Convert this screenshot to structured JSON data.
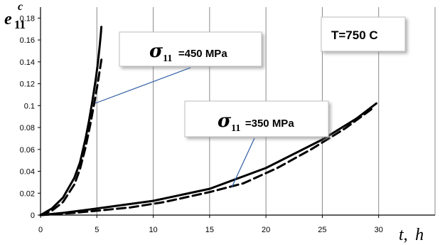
{
  "chart_data": {
    "type": "line",
    "xlabel": {
      "main": "t",
      "sep": ",",
      "unit": "h"
    },
    "ylabel": {
      "main": "e",
      "sub": "11",
      "sup": "c"
    },
    "xlim": [
      0,
      35
    ],
    "ylim": [
      0,
      0.19
    ],
    "xticks": [
      0,
      5,
      10,
      15,
      20,
      25,
      30
    ],
    "yticks": [
      0,
      0.02,
      0.04,
      0.06,
      0.08,
      0.1,
      0.12,
      0.14,
      0.16,
      0.18
    ],
    "ytick_labels": [
      "0",
      "0.02",
      "0.04",
      "0.06",
      "0.08",
      "0.1",
      "0.12",
      "0.14",
      "0.16",
      "0.18"
    ],
    "grid": {
      "vertical": true,
      "horizontal": false
    },
    "series": [
      {
        "style": "solid",
        "group": "450",
        "x": [
          0,
          1,
          2,
          3,
          3.5,
          4,
          4.3,
          4.6,
          4.9,
          5.1,
          5.25,
          5.35,
          5.4
        ],
        "y": [
          0,
          0.006,
          0.016,
          0.034,
          0.048,
          0.07,
          0.086,
          0.104,
          0.124,
          0.14,
          0.155,
          0.165,
          0.172
        ]
      },
      {
        "style": "dashed",
        "group": "450",
        "x": [
          0,
          1,
          2,
          3,
          3.5,
          4,
          4.4,
          4.8,
          5.1,
          5.3,
          5.45
        ],
        "y": [
          0,
          0.004,
          0.012,
          0.028,
          0.042,
          0.062,
          0.082,
          0.104,
          0.122,
          0.135,
          0.145
        ]
      },
      {
        "style": "solid",
        "group": "350",
        "x": [
          0,
          2,
          5,
          10,
          15,
          20,
          25,
          28,
          29.8
        ],
        "y": [
          0,
          0.002,
          0.006,
          0.013,
          0.024,
          0.043,
          0.069,
          0.088,
          0.102
        ]
      },
      {
        "style": "dashed",
        "group": "350",
        "x": [
          0,
          3,
          5,
          8,
          11,
          15,
          18,
          21,
          24,
          27,
          29.4
        ],
        "y": [
          0,
          0.002,
          0.004,
          0.007,
          0.012,
          0.021,
          0.029,
          0.043,
          0.06,
          0.079,
          0.097
        ]
      }
    ],
    "annotations": [
      {
        "id": "a450",
        "sigma": "σ",
        "sub": "11",
        "value": "=450 MPa"
      },
      {
        "id": "a350",
        "sigma": "σ",
        "sub": "11",
        "value": "=350 MPa"
      },
      {
        "id": "temp",
        "text": "T=750 C"
      }
    ]
  }
}
